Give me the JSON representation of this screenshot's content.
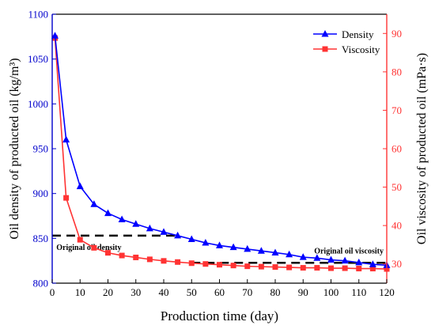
{
  "chart_data": {
    "type": "line",
    "xlabel": "Production time (day)",
    "ylabel_left": "Oil density of producted oil (kg/m³)",
    "ylabel_right": "Oil viscosity of producted oil (mPa·s)",
    "xlim": [
      0,
      120
    ],
    "ylim_left": [
      800,
      1100
    ],
    "ylim_right": [
      25,
      95
    ],
    "x_ticks": [
      0,
      10,
      20,
      30,
      40,
      50,
      60,
      70,
      80,
      90,
      100,
      110,
      120
    ],
    "y_ticks_left": [
      800,
      850,
      900,
      950,
      1000,
      1050,
      1100
    ],
    "y_ticks_right": [
      30,
      40,
      50,
      60,
      70,
      80,
      90
    ],
    "grid": false,
    "legend_position": "top-right",
    "colors": {
      "density": "#0000ff",
      "viscosity": "#ff3333",
      "axis_right": "#ff3333",
      "axis_left": "#0000cc",
      "reference": "#000000"
    },
    "series": [
      {
        "name": "Density",
        "axis": "left",
        "marker": "triangle",
        "x": [
          1,
          5,
          10,
          15,
          20,
          25,
          30,
          35,
          40,
          45,
          50,
          55,
          60,
          65,
          70,
          75,
          80,
          85,
          90,
          95,
          100,
          105,
          110,
          115,
          120
        ],
        "values": [
          1076,
          960,
          908,
          888,
          878,
          871,
          866,
          861,
          857,
          853,
          849,
          845,
          842,
          840,
          838,
          836,
          834,
          832,
          829,
          828,
          826,
          825,
          823,
          821,
          820
        ]
      },
      {
        "name": "Viscosity",
        "axis": "right",
        "marker": "square",
        "x": [
          1,
          5,
          10,
          15,
          20,
          25,
          30,
          35,
          40,
          45,
          50,
          55,
          60,
          65,
          70,
          75,
          80,
          85,
          90,
          95,
          100,
          105,
          110,
          115,
          120
        ],
        "values": [
          88.8,
          47.2,
          36.3,
          34.2,
          32.9,
          32.2,
          31.7,
          31.2,
          30.8,
          30.5,
          30.2,
          30.0,
          29.8,
          29.6,
          29.4,
          29.3,
          29.2,
          29.1,
          29.0,
          29.0,
          28.9,
          28.9,
          28.8,
          28.8,
          28.7
        ]
      }
    ],
    "references": [
      {
        "label": "Original oil density",
        "axis": "left",
        "value": 853,
        "x_range": [
          0,
          45
        ]
      },
      {
        "label": "Original oil viscosity",
        "axis": "right",
        "value": 30.3,
        "x_range": [
          50,
          120
        ]
      }
    ]
  }
}
